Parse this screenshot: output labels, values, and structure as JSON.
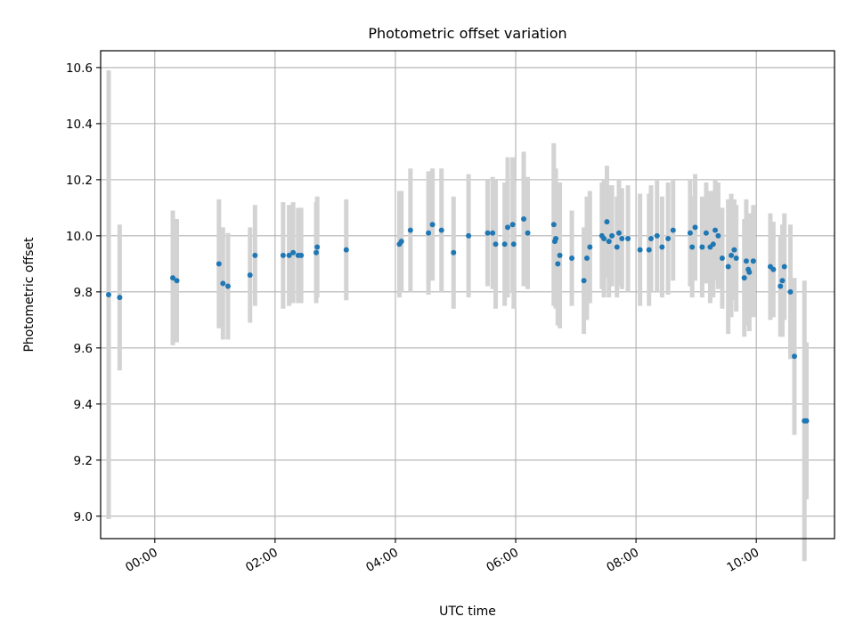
{
  "chart_data": {
    "type": "scatter",
    "title": "Photometric offset variation",
    "xlabel": "UTC time",
    "ylabel": "Photometric offset",
    "xlim": [
      "-00:54",
      "11:18"
    ],
    "ylim": [
      8.92,
      10.66
    ],
    "xticks": [
      "00:00",
      "02:00",
      "04:00",
      "06:00",
      "08:00",
      "10:00"
    ],
    "yticks": [
      "9.0",
      "9.2",
      "9.4",
      "9.6",
      "9.8",
      "10.0",
      "10.2",
      "10.4",
      "10.6"
    ],
    "grid": true,
    "point_color": "#1f77b4",
    "errorbar_color": "#d3d3d3",
    "series": [
      {
        "x": [
          "-00:46",
          "-00:35",
          "00:18",
          "00:22",
          "01:04",
          "01:08",
          "01:13",
          "01:35",
          "01:40",
          "02:08",
          "02:14",
          "02:18",
          "02:23",
          "02:26",
          "02:41",
          "02:42",
          "03:11",
          "04:04",
          "04:06",
          "04:15",
          "04:33",
          "04:37",
          "04:46",
          "04:58",
          "05:13",
          "05:32",
          "05:37",
          "05:40",
          "05:49",
          "05:52",
          "05:57",
          "05:58",
          "06:08",
          "06:12",
          "06:38",
          "06:39",
          "06:40",
          "06:42",
          "06:44",
          "06:56",
          "07:08",
          "07:11",
          "07:14",
          "07:26",
          "07:28",
          "07:31",
          "07:33",
          "07:36",
          "07:41",
          "07:43",
          "07:46",
          "07:52",
          "08:04",
          "08:13",
          "08:15",
          "08:21",
          "08:26",
          "08:32",
          "08:37",
          "08:54",
          "08:56",
          "08:59",
          "09:06",
          "09:10",
          "09:14",
          "09:17",
          "09:19",
          "09:22",
          "09:26",
          "09:32",
          "09:35",
          "09:38",
          "09:40",
          "09:48",
          "09:50",
          "09:52",
          "09:53",
          "09:57",
          "10:14",
          "10:17",
          "10:24",
          "10:26",
          "10:28",
          "10:34",
          "10:38",
          "10:48",
          "10:50"
        ],
        "y": [
          9.79,
          9.78,
          9.85,
          9.84,
          9.9,
          9.83,
          9.82,
          9.86,
          9.93,
          9.93,
          9.93,
          9.94,
          9.93,
          9.93,
          9.94,
          9.96,
          9.95,
          9.97,
          9.98,
          10.02,
          10.01,
          10.04,
          10.02,
          9.94,
          10.0,
          10.01,
          10.01,
          9.97,
          9.97,
          10.03,
          10.04,
          9.97,
          10.06,
          10.01,
          10.04,
          9.98,
          9.99,
          9.9,
          9.93,
          9.92,
          9.84,
          9.92,
          9.96,
          10.0,
          9.99,
          10.05,
          9.98,
          10.0,
          9.96,
          10.01,
          9.99,
          9.99,
          9.95,
          9.95,
          9.99,
          10.0,
          9.96,
          9.99,
          10.02,
          10.01,
          9.96,
          10.03,
          9.96,
          10.01,
          9.96,
          9.97,
          10.02,
          10.0,
          9.92,
          9.89,
          9.93,
          9.95,
          9.92,
          9.85,
          9.91,
          9.88,
          9.87,
          9.91,
          9.89,
          9.88,
          9.82,
          9.84,
          9.89,
          9.8,
          9.57,
          9.34,
          9.34
        ],
        "yerr": [
          0.8,
          0.26,
          0.24,
          0.22,
          0.23,
          0.2,
          0.19,
          0.17,
          0.18,
          0.19,
          0.18,
          0.18,
          0.17,
          0.17,
          0.18,
          0.18,
          0.18,
          0.19,
          0.18,
          0.22,
          0.22,
          0.2,
          0.22,
          0.2,
          0.22,
          0.19,
          0.2,
          0.23,
          0.22,
          0.25,
          0.24,
          0.23,
          0.24,
          0.2,
          0.29,
          0.23,
          0.25,
          0.22,
          0.26,
          0.17,
          0.19,
          0.22,
          0.2,
          0.19,
          0.21,
          0.2,
          0.2,
          0.18,
          0.18,
          0.19,
          0.18,
          0.19,
          0.2,
          0.2,
          0.19,
          0.2,
          0.18,
          0.2,
          0.18,
          0.19,
          0.18,
          0.19,
          0.18,
          0.18,
          0.2,
          0.19,
          0.18,
          0.19,
          0.18,
          0.24,
          0.22,
          0.18,
          0.19,
          0.21,
          0.22,
          0.2,
          0.21,
          0.2,
          0.19,
          0.17,
          0.18,
          0.2,
          0.19,
          0.24,
          0.28,
          0.5,
          0.28
        ]
      }
    ]
  }
}
